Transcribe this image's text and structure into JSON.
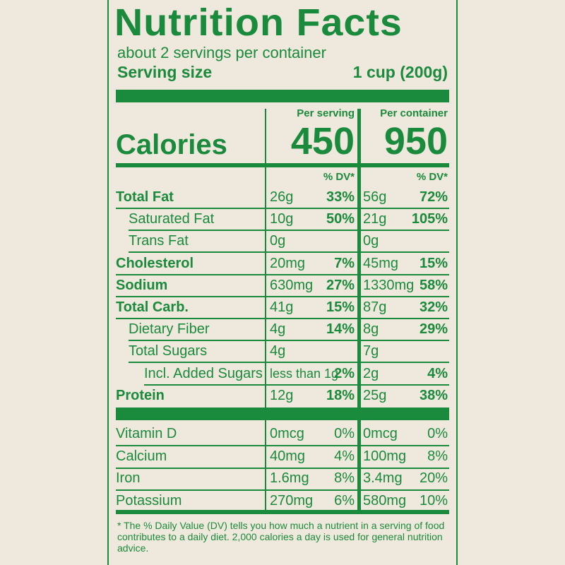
{
  "title": "Nutrition Facts",
  "servings_per_container": "about 2 servings per container",
  "serving_size_label": "Serving size",
  "serving_size_value": "1 cup (200g)",
  "per_serving_header": "Per serving",
  "per_container_header": "Per container",
  "calories_label": "Calories",
  "calories_serving": "450",
  "calories_container": "950",
  "dv_header": "% DV*",
  "nutrients": [
    {
      "name": "Total Fat",
      "bold": true,
      "indent": 0,
      "serving_amount": "26g",
      "serving_dv": "33%",
      "container_amount": "56g",
      "container_dv": "72%"
    },
    {
      "name": "Saturated Fat",
      "bold": false,
      "indent": 1,
      "serving_amount": "10g",
      "serving_dv": "50%",
      "container_amount": "21g",
      "container_dv": "105%"
    },
    {
      "name": "Trans Fat",
      "bold": false,
      "indent": 1,
      "serving_amount": "0g",
      "serving_dv": "",
      "container_amount": "0g",
      "container_dv": ""
    },
    {
      "name": "Cholesterol",
      "bold": true,
      "indent": 0,
      "serving_amount": "20mg",
      "serving_dv": "7%",
      "container_amount": "45mg",
      "container_dv": "15%"
    },
    {
      "name": "Sodium",
      "bold": true,
      "indent": 0,
      "serving_amount": "630mg",
      "serving_dv": "27%",
      "container_amount": "1330mg",
      "container_dv": "58%"
    },
    {
      "name": "Total Carb.",
      "bold": true,
      "indent": 0,
      "serving_amount": "41g",
      "serving_dv": "15%",
      "container_amount": "87g",
      "container_dv": "32%"
    },
    {
      "name": "Dietary Fiber",
      "bold": false,
      "indent": 1,
      "serving_amount": "4g",
      "serving_dv": "14%",
      "container_amount": "8g",
      "container_dv": "29%"
    },
    {
      "name": "Total Sugars",
      "bold": false,
      "indent": 1,
      "serving_amount": "4g",
      "serving_dv": "",
      "container_amount": "7g",
      "container_dv": ""
    },
    {
      "name": "Incl. Added Sugars",
      "bold": false,
      "indent": 2,
      "serving_amount": "less than 1g",
      "serving_dv": "2%",
      "container_amount": "2g",
      "container_dv": "4%"
    },
    {
      "name": "Protein",
      "bold": true,
      "indent": 0,
      "serving_amount": "12g",
      "serving_dv": "18%",
      "container_amount": "25g",
      "container_dv": "38%"
    }
  ],
  "vitamins": [
    {
      "name": "Vitamin D",
      "serving_amount": "0mcg",
      "serving_dv": "0%",
      "container_amount": "0mcg",
      "container_dv": "0%"
    },
    {
      "name": "Calcium",
      "serving_amount": "40mg",
      "serving_dv": "4%",
      "container_amount": "100mg",
      "container_dv": "8%"
    },
    {
      "name": "Iron",
      "serving_amount": "1.6mg",
      "serving_dv": "8%",
      "container_amount": "3.4mg",
      "container_dv": "20%"
    },
    {
      "name": "Potassium",
      "serving_amount": "270mg",
      "serving_dv": "6%",
      "container_amount": "580mg",
      "container_dv": "10%"
    }
  ],
  "footnote": "* The % Daily Value (DV) tells you how much a nutrient in a serving of food contributes to a daily diet. 2,000 calories a day is used for general nutrition advice."
}
